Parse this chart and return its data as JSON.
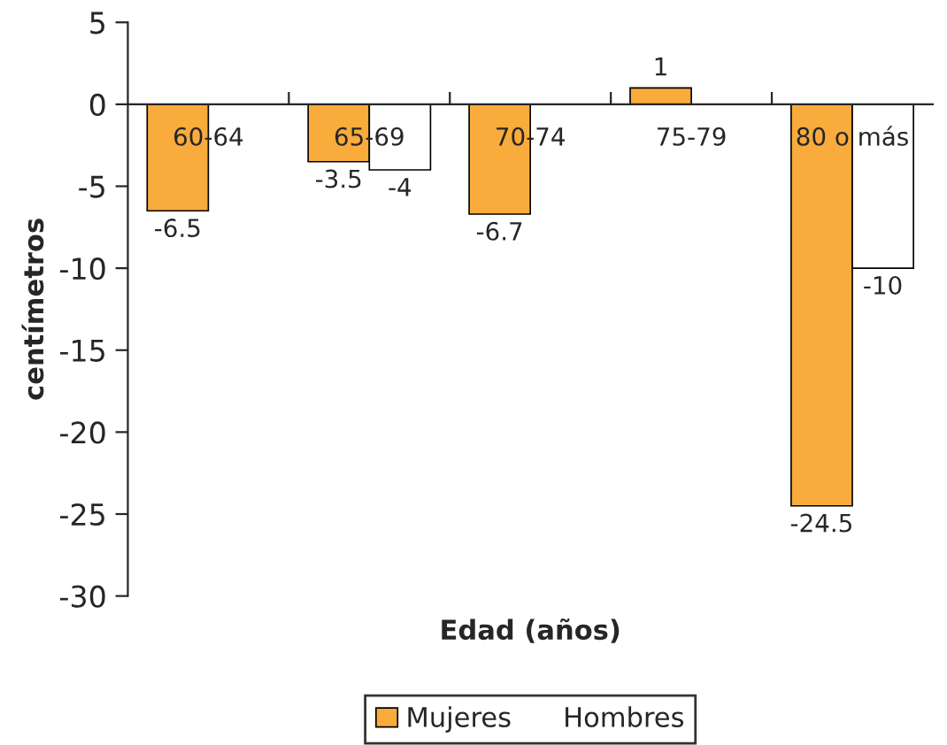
{
  "chart_data": {
    "type": "bar",
    "xlabel": "Edad (años)",
    "ylabel": "centímetros",
    "categories": [
      "60-64",
      "65-69",
      "70-74",
      "75-79",
      "80 o más"
    ],
    "series": [
      {
        "name": "Mujeres",
        "color": "#f9ab3c",
        "values": [
          -6.5,
          -3.5,
          -6.7,
          1,
          -24.5
        ],
        "value_labels": [
          "-6.5",
          "-3.5",
          "-6.7",
          "1",
          "-24.5"
        ]
      },
      {
        "name": "Hombres",
        "color": "#ffffff",
        "values": [
          null,
          -4,
          null,
          null,
          -10
        ],
        "value_labels": [
          null,
          "-4",
          null,
          null,
          "-10"
        ]
      }
    ],
    "ylim": [
      -30,
      5
    ],
    "yticks": [
      -30,
      -25,
      -20,
      -15,
      -10,
      -5,
      0,
      5
    ],
    "grid": false,
    "legend": "bottom"
  }
}
